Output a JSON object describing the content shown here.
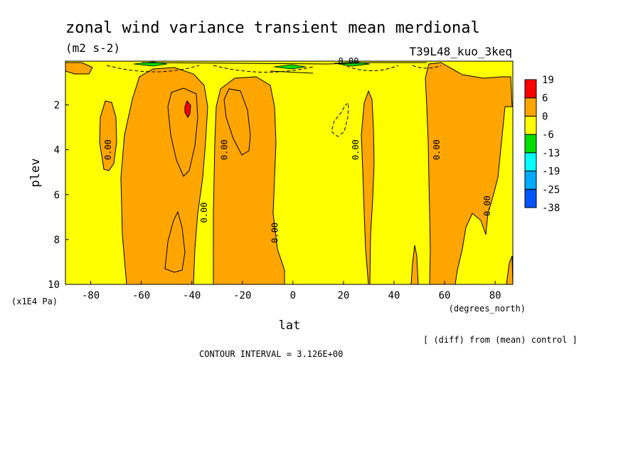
{
  "chart_data": {
    "type": "contour",
    "title": "zonal wind variance transient mean merdional",
    "units": "(m2 s-2)",
    "run_label": "T39L48_kuo_3keq",
    "xlabel": "lat",
    "x_units": "(degrees_north)",
    "ylabel": "plev",
    "y_units": "(x1E4 Pa)",
    "xlim": [
      -90,
      87
    ],
    "ylim": [
      10,
      0.05
    ],
    "xticks": [
      -80,
      -60,
      -40,
      -20,
      0,
      20,
      40,
      60,
      80
    ],
    "yticks": [
      2,
      4,
      6,
      8,
      10
    ],
    "xtick_labels": [
      "-80",
      "-60",
      "-40",
      "-20",
      "0",
      "20",
      "40",
      "60",
      "80"
    ],
    "ytick_labels": [
      "2",
      "4",
      "6",
      "8",
      "10"
    ],
    "contour_interval": "CONTOUR INTERVAL = 3.126E+00",
    "footnote": "[ (diff) from (mean) control ]",
    "contour_labels": [
      {
        "text": "0.00",
        "lat": -72,
        "plev": 4.0
      },
      {
        "text": "0.00",
        "lat": -34,
        "plev": 6.8
      },
      {
        "text": "0.00",
        "lat": -26,
        "plev": 4.0
      },
      {
        "text": "0.00",
        "lat": -6,
        "plev": 7.7
      },
      {
        "text": "0.00",
        "lat": 26,
        "plev": 4.0
      },
      {
        "text": "0.00",
        "lat": 58,
        "plev": 4.0
      },
      {
        "text": "0.00",
        "lat": 78,
        "plev": 6.5
      },
      {
        "text": "0.00",
        "lat": 22,
        "plev": 0.05
      }
    ],
    "colorbar": {
      "labels": [
        "19",
        "6",
        "0",
        "-6",
        "-13",
        "-19",
        "-25",
        "-38"
      ],
      "colors": [
        "#ff0000",
        "#ffa500",
        "#ffff00",
        "#00dd00",
        "#00ffff",
        "#00aaff",
        "#0055ff"
      ]
    },
    "fill_colors": {
      "positive": "#ffa500",
      "background": "#ffff00",
      "max": "#ff0000",
      "negative": "#00dd00"
    }
  }
}
